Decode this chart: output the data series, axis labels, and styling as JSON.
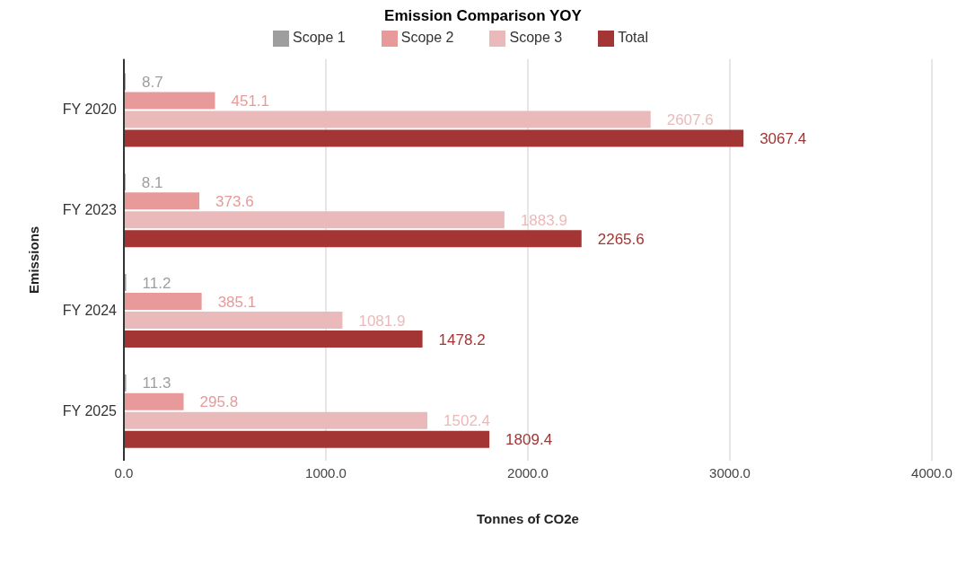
{
  "chart_data": {
    "type": "bar",
    "orientation": "horizontal",
    "title": "Emission Comparison YOY",
    "xlabel": "Tonnes of CO2e",
    "ylabel": "Emissions",
    "categories": [
      "FY 2020",
      "FY 2023",
      "FY 2024",
      "FY 2025"
    ],
    "series": [
      {
        "name": "Scope 1",
        "color": "#9e9e9e",
        "values": [
          8.7,
          8.1,
          11.2,
          11.3
        ]
      },
      {
        "name": "Scope 2",
        "color": "#e89a9a",
        "values": [
          451.1,
          373.6,
          385.1,
          295.8
        ]
      },
      {
        "name": "Scope 3",
        "color": "#eababa",
        "values": [
          2607.6,
          1883.9,
          1081.9,
          1502.4
        ]
      },
      {
        "name": "Total",
        "color": "#a33535",
        "values": [
          3067.4,
          2265.6,
          1478.2,
          1809.4
        ]
      }
    ],
    "xlim": [
      0,
      4000
    ],
    "xticks": [
      {
        "value": 0,
        "label": "0.0"
      },
      {
        "value": 1000,
        "label": "1000.0"
      },
      {
        "value": 2000,
        "label": "2000.0"
      },
      {
        "value": 3000,
        "label": "3000.0"
      },
      {
        "value": 4000,
        "label": "4000.0"
      }
    ],
    "grid": "x",
    "legend": "top",
    "data_labels": true
  }
}
